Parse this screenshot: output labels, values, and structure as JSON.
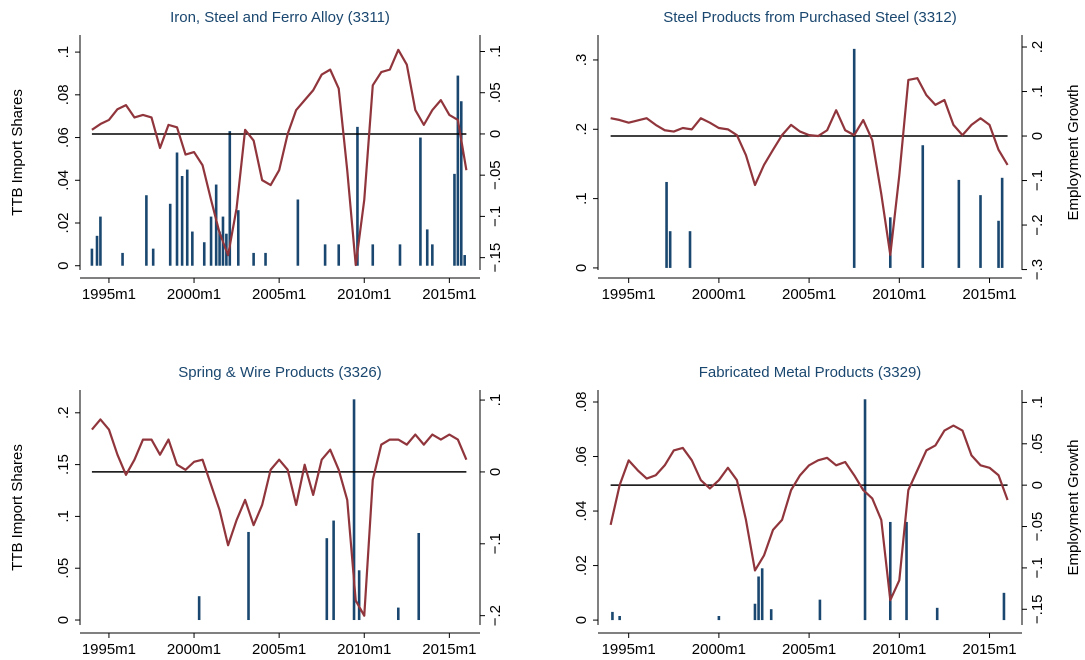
{
  "chart_data": [
    {
      "type": "bar-line",
      "title": "Iron, Steel and Ferro Alloy (3311)",
      "y_label": "TTB Import Shares",
      "xlim": [
        1993.3,
        2016.8
      ],
      "xticks": [
        {
          "value": 1995,
          "label": "1995m1"
        },
        {
          "value": 2000,
          "label": "2000m1"
        },
        {
          "value": 2005,
          "label": "2005m1"
        },
        {
          "value": 2010,
          "label": "2010m1"
        },
        {
          "value": 2015,
          "label": "2015m1"
        }
      ],
      "ylim": [
        -0.002,
        0.108
      ],
      "yticks": [
        0,
        {
          "value": 0.02,
          "label": ".02"
        },
        {
          "value": 0.04,
          "label": ".04"
        },
        {
          "value": 0.06,
          "label": ".06"
        },
        {
          "value": 0.08,
          "label": ".08"
        },
        {
          "value": 0.1,
          "label": ".1"
        }
      ],
      "y2lim": [
        -0.165,
        0.12
      ],
      "y2ticks": [
        {
          "value": -0.15,
          "label": "−.15"
        },
        {
          "value": -0.1,
          "label": "−.1"
        },
        {
          "value": -0.05,
          "label": "−.05"
        },
        0,
        {
          "value": 0.05,
          "label": ".05"
        },
        {
          "value": 0.1,
          "label": ".1"
        }
      ],
      "bars": {
        "color": "#1a476f",
        "x": [
          1994.0,
          1994.3,
          1994.5,
          1995.8,
          1997.2,
          1997.6,
          1998.6,
          1999.0,
          1999.3,
          1999.6,
          1999.9,
          2000.6,
          2001.0,
          2001.3,
          2001.5,
          2001.7,
          2001.9,
          2002.1,
          2002.6,
          2003.5,
          2004.2,
          2006.1,
          2007.7,
          2008.5,
          2009.6,
          2010.5,
          2012.1,
          2013.3,
          2013.7,
          2014.0,
          2015.3,
          2015.5,
          2015.7,
          2015.9
        ],
        "values": [
          0.008,
          0.014,
          0.023,
          0.006,
          0.033,
          0.008,
          0.029,
          0.053,
          0.042,
          0.045,
          0.016,
          0.011,
          0.023,
          0.038,
          0.016,
          0.023,
          0.015,
          0.063,
          0.026,
          0.006,
          0.006,
          0.031,
          0.01,
          0.01,
          0.065,
          0.01,
          0.01,
          0.06,
          0.017,
          0.01,
          0.043,
          0.089,
          0.077,
          0.005
        ]
      },
      "line": {
        "axis": "y2",
        "color": "#90353b",
        "x": [
          1994.0,
          1994.5,
          1995.0,
          1995.5,
          1996.0,
          1996.5,
          1997.0,
          1997.5,
          1998.0,
          1998.5,
          1999.0,
          1999.5,
          2000.0,
          2000.5,
          2001.0,
          2001.5,
          2002.0,
          2002.5,
          2003.0,
          2003.5,
          2004.0,
          2004.5,
          2005.0,
          2005.5,
          2006.0,
          2006.5,
          2007.0,
          2007.5,
          2008.0,
          2008.5,
          2009.0,
          2009.5,
          2010.0,
          2010.5,
          2011.0,
          2011.5,
          2012.0,
          2012.5,
          2013.0,
          2013.5,
          2014.0,
          2014.5,
          2015.0,
          2015.5,
          2016.0
        ],
        "values": [
          0.005,
          0.012,
          0.017,
          0.03,
          0.035,
          0.02,
          0.023,
          0.02,
          -0.017,
          0.011,
          0.008,
          -0.025,
          -0.022,
          -0.038,
          -0.08,
          -0.12,
          -0.147,
          -0.09,
          0.005,
          -0.008,
          -0.056,
          -0.062,
          -0.044,
          0.0,
          0.029,
          0.041,
          0.053,
          0.072,
          0.078,
          0.055,
          -0.044,
          -0.159,
          -0.08,
          0.059,
          0.075,
          0.078,
          0.102,
          0.084,
          0.029,
          0.011,
          0.029,
          0.041,
          0.023,
          0.017,
          -0.044
        ]
      },
      "reference_line": {
        "axis": "y2",
        "value": 0,
        "color": "#000000"
      }
    },
    {
      "type": "bar-line",
      "title": "Steel Products from Purchased Steel (3312)",
      "y2_label": "Employment Growth",
      "xlim": [
        1993.3,
        2016.8
      ],
      "xticks": [
        {
          "value": 1995,
          "label": "1995m1"
        },
        {
          "value": 2000,
          "label": "2000m1"
        },
        {
          "value": 2005,
          "label": "2005m1"
        },
        {
          "value": 2010,
          "label": "2010m1"
        },
        {
          "value": 2015,
          "label": "2015m1"
        }
      ],
      "ylim": [
        -0.003,
        0.336
      ],
      "yticks": [
        0,
        {
          "value": 0.1,
          "label": ".1"
        },
        {
          "value": 0.2,
          "label": ".2"
        },
        {
          "value": 0.3,
          "label": ".3"
        }
      ],
      "y2lim": [
        -0.301,
        0.227
      ],
      "y2ticks": [
        {
          "value": -0.3,
          "label": "−.3"
        },
        {
          "value": -0.2,
          "label": "−.2"
        },
        {
          "value": -0.1,
          "label": "−.1"
        },
        0,
        {
          "value": 0.1,
          "label": ".1"
        },
        {
          "value": 0.2,
          "label": ".2"
        }
      ],
      "bars": {
        "color": "#1a476f",
        "x": [
          1997.1,
          1997.3,
          1998.4,
          2007.5,
          2009.5,
          2011.3,
          2013.3,
          2014.5,
          2015.5,
          2015.7
        ],
        "values": [
          0.124,
          0.053,
          0.053,
          0.316,
          0.073,
          0.177,
          0.127,
          0.105,
          0.068,
          0.13
        ]
      },
      "line": {
        "axis": "y2",
        "color": "#90353b",
        "x": [
          1994.0,
          1994.5,
          1995.0,
          1995.5,
          1996.0,
          1996.5,
          1997.0,
          1997.5,
          1998.0,
          1998.5,
          1999.0,
          1999.5,
          2000.0,
          2000.5,
          2001.0,
          2001.5,
          2002.0,
          2002.5,
          2003.0,
          2003.5,
          2004.0,
          2004.5,
          2005.0,
          2005.5,
          2006.0,
          2006.5,
          2007.0,
          2007.5,
          2008.0,
          2008.5,
          2009.0,
          2009.5,
          2010.0,
          2010.5,
          2011.0,
          2011.5,
          2012.0,
          2012.5,
          2013.0,
          2013.5,
          2014.0,
          2014.5,
          2015.0,
          2015.5,
          2016.0
        ],
        "values": [
          0.04,
          0.036,
          0.03,
          0.035,
          0.04,
          0.025,
          0.013,
          0.01,
          0.018,
          0.015,
          0.04,
          0.03,
          0.018,
          0.015,
          0.002,
          -0.043,
          -0.11,
          -0.065,
          -0.031,
          0.002,
          0.025,
          0.01,
          0.002,
          0.0,
          0.013,
          0.058,
          0.013,
          0.002,
          0.036,
          -0.009,
          -0.13,
          -0.267,
          -0.088,
          0.126,
          0.13,
          0.092,
          0.07,
          0.081,
          0.025,
          0.002,
          0.025,
          0.04,
          0.025,
          -0.031,
          -0.065
        ]
      },
      "reference_line": {
        "axis": "y2",
        "value": 0,
        "color": "#000000"
      }
    },
    {
      "type": "bar-line",
      "title": "Spring & Wire Products (3326)",
      "y_label": "TTB Import Shares",
      "xlim": [
        1993.3,
        2016.8
      ],
      "xticks": [
        {
          "value": 1995,
          "label": "1995m1"
        },
        {
          "value": 2000,
          "label": "2000m1"
        },
        {
          "value": 2005,
          "label": "2005m1"
        },
        {
          "value": 2010,
          "label": "2010m1"
        },
        {
          "value": 2015,
          "label": "2015m1"
        }
      ],
      "ylim": [
        -0.0048,
        0.222
      ],
      "yticks": [
        0,
        {
          "value": 0.05,
          "label": ".05"
        },
        {
          "value": 0.1,
          "label": ".1"
        },
        {
          "value": 0.15,
          "label": ".15"
        },
        {
          "value": 0.2,
          "label": ".2"
        }
      ],
      "y2lim": [
        -0.213,
        0.114
      ],
      "y2ticks": [
        {
          "value": -0.2,
          "label": "−.2"
        },
        {
          "value": -0.1,
          "label": "−.1"
        },
        0,
        {
          "value": 0.1,
          "label": ".1"
        }
      ],
      "bars": {
        "color": "#1a476f",
        "x": [
          2000.3,
          2003.2,
          2007.8,
          2008.2,
          2009.4,
          2009.7,
          2012.0,
          2013.2
        ],
        "values": [
          0.023,
          0.085,
          0.079,
          0.096,
          0.213,
          0.048,
          0.012,
          0.084
        ]
      },
      "line": {
        "axis": "y2",
        "color": "#90353b",
        "x": [
          1994.0,
          1994.5,
          1995.0,
          1995.5,
          1996.0,
          1996.5,
          1997.0,
          1997.5,
          1998.0,
          1998.5,
          1999.0,
          1999.5,
          2000.0,
          2000.5,
          2001.0,
          2001.5,
          2002.0,
          2002.5,
          2003.0,
          2003.5,
          2004.0,
          2004.5,
          2005.0,
          2005.5,
          2006.0,
          2006.5,
          2007.0,
          2007.5,
          2008.0,
          2008.5,
          2009.0,
          2009.5,
          2010.0,
          2010.5,
          2011.0,
          2011.5,
          2012.0,
          2012.5,
          2013.0,
          2013.5,
          2014.0,
          2014.5,
          2015.0,
          2015.5,
          2016.0
        ],
        "values": [
          0.059,
          0.073,
          0.059,
          0.024,
          -0.004,
          0.017,
          0.045,
          0.045,
          0.024,
          0.045,
          0.01,
          0.003,
          0.014,
          0.017,
          -0.018,
          -0.053,
          -0.102,
          -0.067,
          -0.039,
          -0.074,
          -0.046,
          0.003,
          0.017,
          0.003,
          -0.046,
          0.01,
          -0.032,
          0.017,
          0.031,
          0.003,
          -0.039,
          -0.179,
          -0.2,
          -0.011,
          0.038,
          0.045,
          0.045,
          0.038,
          0.052,
          0.038,
          0.052,
          0.045,
          0.052,
          0.045,
          0.017
        ]
      },
      "reference_line": {
        "axis": "y2",
        "value": 0,
        "color": "#000000"
      }
    },
    {
      "type": "bar-line",
      "title": "Fabricated Metal Products (3329)",
      "y2_label": "Employment Growth",
      "xlim": [
        1993.3,
        2016.8
      ],
      "xticks": [
        {
          "value": 1995,
          "label": "1995m1"
        },
        {
          "value": 2000,
          "label": "2000m1"
        },
        {
          "value": 2005,
          "label": "2005m1"
        },
        {
          "value": 2010,
          "label": "2010m1"
        },
        {
          "value": 2015,
          "label": "2015m1"
        }
      ],
      "ylim": [
        -0.0018,
        0.0844
      ],
      "yticks": [
        0,
        {
          "value": 0.02,
          "label": ".02"
        },
        {
          "value": 0.04,
          "label": ".04"
        },
        {
          "value": 0.06,
          "label": ".06"
        },
        {
          "value": 0.08,
          "label": ".08"
        }
      ],
      "y2lim": [
        -0.169,
        0.115
      ],
      "y2ticks": [
        {
          "value": -0.15,
          "label": "−.15"
        },
        {
          "value": -0.1,
          "label": "−.1"
        },
        {
          "value": -0.05,
          "label": "−.05"
        },
        0,
        {
          "value": 0.05,
          "label": ".05"
        },
        {
          "value": 0.1,
          "label": ".1"
        }
      ],
      "bars": {
        "color": "#1a476f",
        "x": [
          1994.1,
          1994.5,
          2000.0,
          2002.0,
          2002.2,
          2002.4,
          2002.9,
          2005.6,
          2008.1,
          2009.5,
          2010.4,
          2012.1,
          2015.8
        ],
        "values": [
          0.003,
          0.0015,
          0.0015,
          0.006,
          0.016,
          0.019,
          0.004,
          0.0075,
          0.081,
          0.036,
          0.036,
          0.0045,
          0.01
        ]
      },
      "line": {
        "axis": "y2",
        "color": "#90353b",
        "x": [
          1994.0,
          1994.5,
          1995.0,
          1995.5,
          1996.0,
          1996.5,
          1997.0,
          1997.5,
          1998.0,
          1998.5,
          1999.0,
          1999.5,
          2000.0,
          2000.5,
          2001.0,
          2001.5,
          2002.0,
          2002.5,
          2003.0,
          2003.5,
          2004.0,
          2004.5,
          2005.0,
          2005.5,
          2006.0,
          2006.5,
          2007.0,
          2007.5,
          2008.0,
          2008.5,
          2009.0,
          2009.5,
          2010.0,
          2010.5,
          2011.0,
          2011.5,
          2012.0,
          2012.5,
          2013.0,
          2013.5,
          2014.0,
          2014.5,
          2015.0,
          2015.5,
          2016.0
        ],
        "values": [
          -0.048,
          0.0,
          0.03,
          0.018,
          0.008,
          0.012,
          0.024,
          0.042,
          0.045,
          0.03,
          0.006,
          -0.004,
          0.006,
          0.021,
          0.006,
          -0.042,
          -0.103,
          -0.085,
          -0.054,
          -0.042,
          -0.006,
          0.012,
          0.024,
          0.03,
          0.033,
          0.024,
          0.028,
          0.012,
          -0.006,
          -0.016,
          -0.042,
          -0.139,
          -0.115,
          -0.006,
          0.018,
          0.042,
          0.048,
          0.066,
          0.072,
          0.066,
          0.036,
          0.024,
          0.021,
          0.012,
          -0.018
        ]
      },
      "reference_line": {
        "axis": "y2",
        "value": 0,
        "color": "#000000"
      }
    }
  ]
}
